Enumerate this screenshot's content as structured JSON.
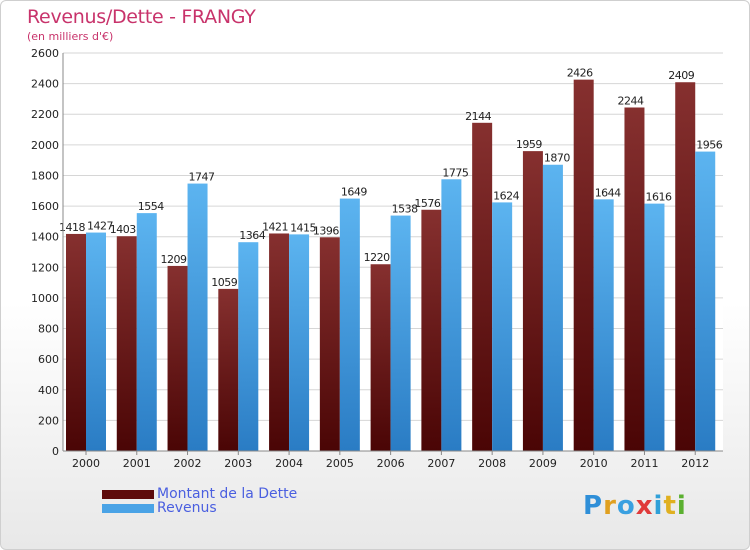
{
  "title": "Revenus/Dette - FRANGY",
  "subtitle": "(en milliers d'€)",
  "legend": {
    "debt_label": "Montant de la Dette",
    "revenue_label": "Revenus"
  },
  "logo": {
    "text": "Proxiti"
  },
  "colors": {
    "debt": "#7a1a1a",
    "debt_dark": "#4a0505",
    "revenue": "#56b0ee",
    "revenue_dark": "#2a7cc4",
    "title": "#c8336b",
    "legend_text": "#4a5fe0"
  },
  "chart_data": {
    "type": "bar",
    "title": "Revenus/Dette - FRANGY",
    "subtitle": "(en milliers d'€)",
    "categories": [
      "2000",
      "2001",
      "2002",
      "2003",
      "2004",
      "2005",
      "2006",
      "2007",
      "2008",
      "2009",
      "2010",
      "2011",
      "2012"
    ],
    "series": [
      {
        "name": "Montant de la Dette",
        "values": [
          1418,
          1403,
          1209,
          1059,
          1421,
          1396,
          1220,
          1576,
          2144,
          1959,
          2426,
          2244,
          2409
        ]
      },
      {
        "name": "Revenus",
        "values": [
          1427,
          1554,
          1747,
          1364,
          1415,
          1649,
          1538,
          1775,
          1624,
          1870,
          1644,
          1616,
          1956
        ]
      }
    ],
    "ylim": [
      0,
      2600
    ],
    "yticks": [
      0,
      200,
      400,
      600,
      800,
      1000,
      1200,
      1400,
      1600,
      1800,
      2000,
      2200,
      2400,
      2600
    ],
    "grid": true,
    "legend_position": "bottom-left"
  }
}
